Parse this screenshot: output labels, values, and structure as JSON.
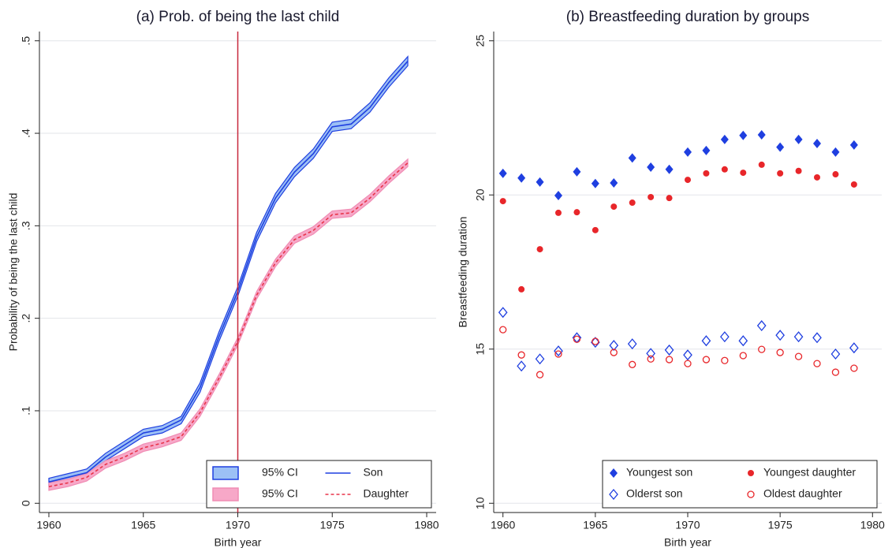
{
  "chart_data": [
    {
      "type": "line",
      "title": "(a) Prob. of being the last child",
      "x_label": "Birth year",
      "y_label": "Probability of being the last child",
      "x": [
        1960,
        1961,
        1962,
        1963,
        1964,
        1965,
        1966,
        1967,
        1968,
        1969,
        1970,
        1971,
        1972,
        1973,
        1974,
        1975,
        1976,
        1977,
        1978,
        1979
      ],
      "series": [
        {
          "name": "95% CI",
          "type": "band",
          "color": "#9cc0f5",
          "line_color": "#1f3fe0",
          "lower": [
            0.019,
            0.024,
            0.029,
            0.046,
            0.059,
            0.072,
            0.076,
            0.086,
            0.12,
            0.175,
            0.224,
            0.283,
            0.325,
            0.353,
            0.373,
            0.402,
            0.405,
            0.423,
            0.45,
            0.473
          ],
          "upper": [
            0.027,
            0.032,
            0.037,
            0.054,
            0.067,
            0.08,
            0.084,
            0.094,
            0.13,
            0.185,
            0.234,
            0.293,
            0.335,
            0.363,
            0.383,
            0.412,
            0.415,
            0.433,
            0.46,
            0.483
          ]
        },
        {
          "name": "Son",
          "type": "line",
          "color": "#1f3fe0",
          "dash": false,
          "values": [
            0.023,
            0.028,
            0.033,
            0.05,
            0.063,
            0.076,
            0.08,
            0.09,
            0.125,
            0.18,
            0.229,
            0.288,
            0.33,
            0.358,
            0.378,
            0.407,
            0.41,
            0.428,
            0.455,
            0.478
          ]
        },
        {
          "name": "95% CI",
          "type": "band",
          "color": "#f7a8c8",
          "line_color": "#f08cb4",
          "lower": [
            0.014,
            0.018,
            0.024,
            0.038,
            0.046,
            0.056,
            0.061,
            0.068,
            0.094,
            0.131,
            0.171,
            0.221,
            0.256,
            0.281,
            0.291,
            0.308,
            0.31,
            0.326,
            0.346,
            0.364
          ],
          "upper": [
            0.022,
            0.026,
            0.032,
            0.046,
            0.054,
            0.064,
            0.069,
            0.076,
            0.102,
            0.139,
            0.179,
            0.229,
            0.264,
            0.289,
            0.299,
            0.316,
            0.318,
            0.334,
            0.354,
            0.372
          ]
        },
        {
          "name": "Daughter",
          "type": "line",
          "color": "#e8344a",
          "dash": true,
          "values": [
            0.018,
            0.022,
            0.028,
            0.042,
            0.05,
            0.06,
            0.065,
            0.072,
            0.098,
            0.135,
            0.175,
            0.225,
            0.26,
            0.285,
            0.295,
            0.312,
            0.314,
            0.33,
            0.35,
            0.368
          ]
        }
      ],
      "xline": 1970,
      "xline_color": "#c8283c",
      "xlim": [
        1959.5,
        1980.5
      ],
      "xticks": [
        1960,
        1965,
        1970,
        1975,
        1980
      ],
      "ylim": [
        -0.01,
        0.51
      ],
      "yticks": [
        0,
        {
          "value": 0.1,
          "label": ".1"
        },
        {
          "value": 0.2,
          "label": ".2"
        },
        {
          "value": 0.3,
          "label": ".3"
        },
        {
          "value": 0.4,
          "label": ".4"
        },
        {
          "value": 0.5,
          "label": ".5"
        }
      ],
      "grid": true,
      "legend": "lower right"
    },
    {
      "type": "scatter",
      "title": "(b) Breastfeeding duration by groups",
      "x_label": "Birth year",
      "y_label": "Breastfeeding duration",
      "x": [
        1960,
        1961,
        1962,
        1963,
        1964,
        1965,
        1966,
        1967,
        1968,
        1969,
        1970,
        1971,
        1972,
        1973,
        1974,
        1975,
        1976,
        1977,
        1978,
        1979
      ],
      "series": [
        {
          "name": "Youngest son",
          "color": "#1f3fe0",
          "marker": "diamond",
          "values": [
            20.7,
            20.55,
            20.42,
            19.98,
            20.75,
            20.37,
            20.39,
            21.2,
            20.9,
            20.83,
            21.39,
            21.44,
            21.8,
            21.93,
            21.95,
            21.55,
            21.8,
            21.67,
            21.39,
            21.62
          ]
        },
        {
          "name": "Youngest daughter",
          "color": "#e8262a",
          "marker": "circle",
          "values": [
            19.8,
            16.94,
            18.24,
            19.42,
            19.44,
            18.86,
            19.62,
            19.75,
            19.93,
            19.9,
            20.49,
            20.7,
            20.83,
            20.72,
            20.98,
            20.7,
            20.78,
            20.57,
            20.67,
            20.34
          ]
        },
        {
          "name": "Olderst son",
          "color": "#1f3fe0",
          "marker": "diamond-open",
          "values": [
            16.19,
            14.45,
            14.68,
            14.94,
            15.37,
            15.22,
            15.12,
            15.17,
            14.86,
            14.97,
            14.81,
            15.27,
            15.4,
            15.27,
            15.76,
            15.45,
            15.4,
            15.37,
            14.84,
            15.04
          ]
        },
        {
          "name": "Oldest daughter",
          "color": "#e8262a",
          "marker": "circle-open",
          "values": [
            15.63,
            14.81,
            14.17,
            14.84,
            15.32,
            15.25,
            14.89,
            14.5,
            14.68,
            14.66,
            14.53,
            14.66,
            14.63,
            14.79,
            14.99,
            14.89,
            14.76,
            14.53,
            14.25,
            14.38
          ]
        }
      ],
      "xlim": [
        1959.5,
        1980.5
      ],
      "xticks": [
        1960,
        1965,
        1970,
        1975,
        1980
      ],
      "ylim": [
        9.7,
        25.3
      ],
      "yticks": [
        10,
        15,
        20,
        25
      ],
      "grid": true,
      "legend": "lower right"
    }
  ]
}
